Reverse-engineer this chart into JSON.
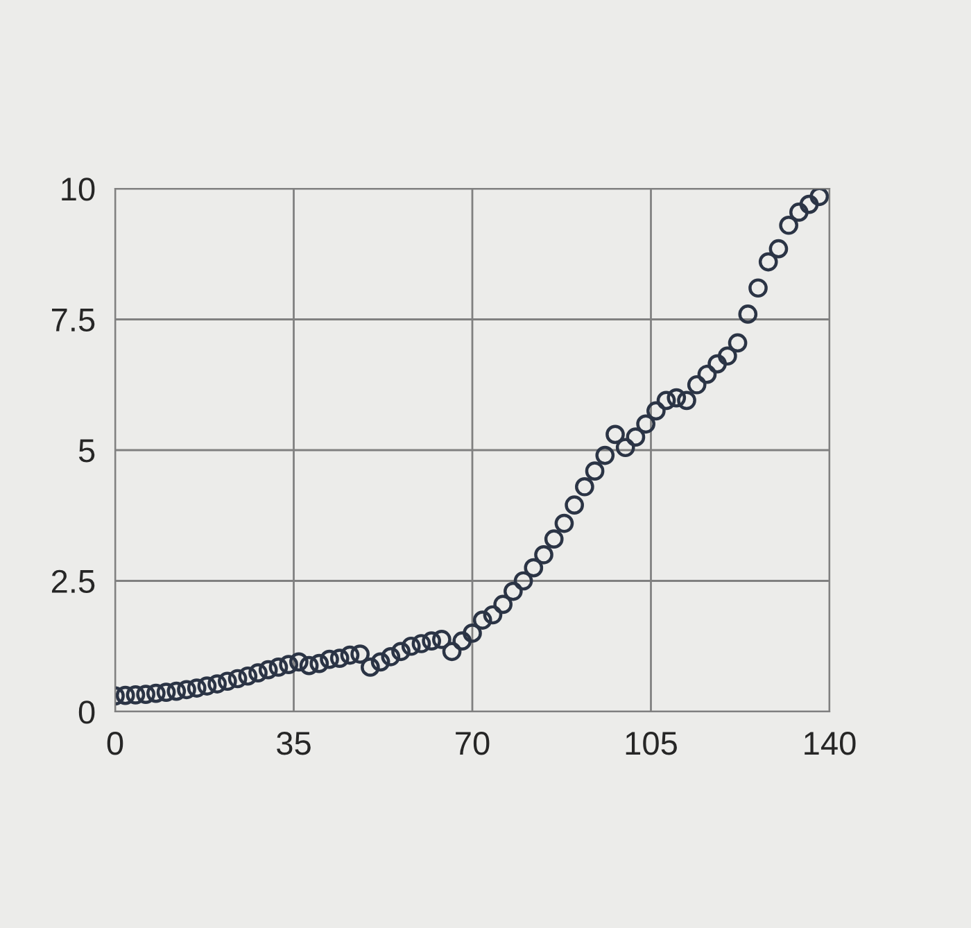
{
  "chart_data": {
    "type": "scatter",
    "marker": "circle",
    "grid": true,
    "x": [
      0,
      2,
      4,
      6,
      8,
      10,
      12,
      14,
      16,
      18,
      20,
      22,
      24,
      26,
      28,
      30,
      32,
      34,
      36,
      38,
      40,
      42,
      44,
      46,
      48,
      50,
      52,
      54,
      56,
      58,
      60,
      62,
      64,
      66,
      68,
      70,
      72,
      74,
      76,
      78,
      80,
      82,
      84,
      86,
      88,
      90,
      92,
      94,
      96,
      98,
      100,
      102,
      104,
      106,
      108,
      110,
      112,
      114,
      116,
      118,
      120,
      122,
      124,
      126,
      128,
      130,
      132,
      134,
      136,
      138
    ],
    "series": [
      {
        "color": "#2b3445",
        "values": [
          0.3,
          0.31,
          0.32,
          0.33,
          0.35,
          0.37,
          0.39,
          0.42,
          0.45,
          0.49,
          0.53,
          0.58,
          0.63,
          0.68,
          0.74,
          0.8,
          0.85,
          0.9,
          0.95,
          0.88,
          0.92,
          1.0,
          1.02,
          1.08,
          1.1,
          0.85,
          0.95,
          1.05,
          1.15,
          1.25,
          1.3,
          1.35,
          1.38,
          1.15,
          1.35,
          1.5,
          1.75,
          1.85,
          2.05,
          2.3,
          2.5,
          2.75,
          3.0,
          3.3,
          3.6,
          3.95,
          4.3,
          4.6,
          4.9,
          5.3,
          5.05,
          5.25,
          5.5,
          5.75,
          5.95,
          6.0,
          5.95,
          6.25,
          6.45,
          6.65,
          6.8,
          7.05,
          7.6,
          8.1,
          8.6,
          8.85,
          9.3,
          9.55,
          9.7,
          9.85
        ]
      }
    ],
    "xlim": [
      0,
      140
    ],
    "xticks": [
      0,
      35,
      70,
      105,
      140
    ],
    "ylim": [
      0,
      10
    ],
    "yticks": [
      0,
      2.5,
      5,
      7.5,
      10
    ]
  }
}
